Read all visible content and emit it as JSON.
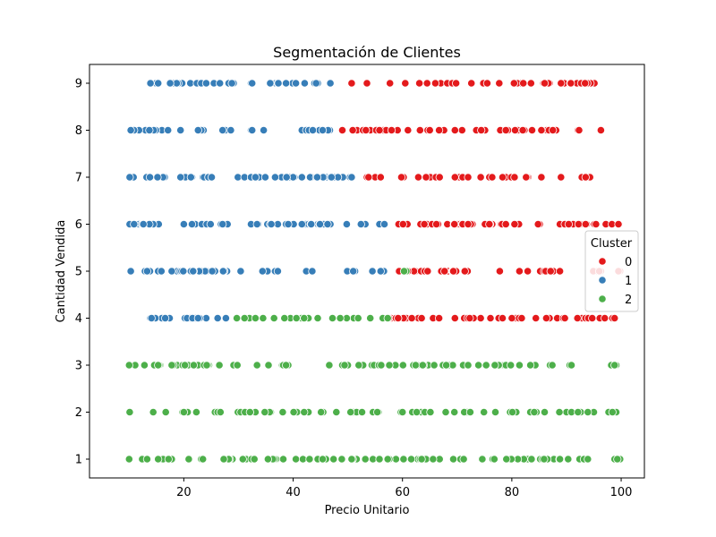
{
  "chart_data": {
    "type": "scatter",
    "title": "Segmentación de Clientes",
    "xlabel": "Precio Unitario",
    "ylabel": "Cantidad Vendida",
    "xlim": [
      2.75,
      104.25
    ],
    "ylim": [
      0.6,
      9.4
    ],
    "xticks": [
      20,
      40,
      60,
      80,
      100
    ],
    "yticks": [
      1,
      2,
      3,
      4,
      5,
      6,
      7,
      8,
      9
    ],
    "grid": false,
    "legend": {
      "title": "Cluster",
      "placement": "right"
    },
    "series": [
      {
        "name": "0",
        "color": "#e41a1c",
        "points": []
      },
      {
        "name": "1",
        "color": "#377eb8",
        "points": []
      },
      {
        "name": "2",
        "color": "#4daf4a",
        "points": []
      }
    ]
  }
}
